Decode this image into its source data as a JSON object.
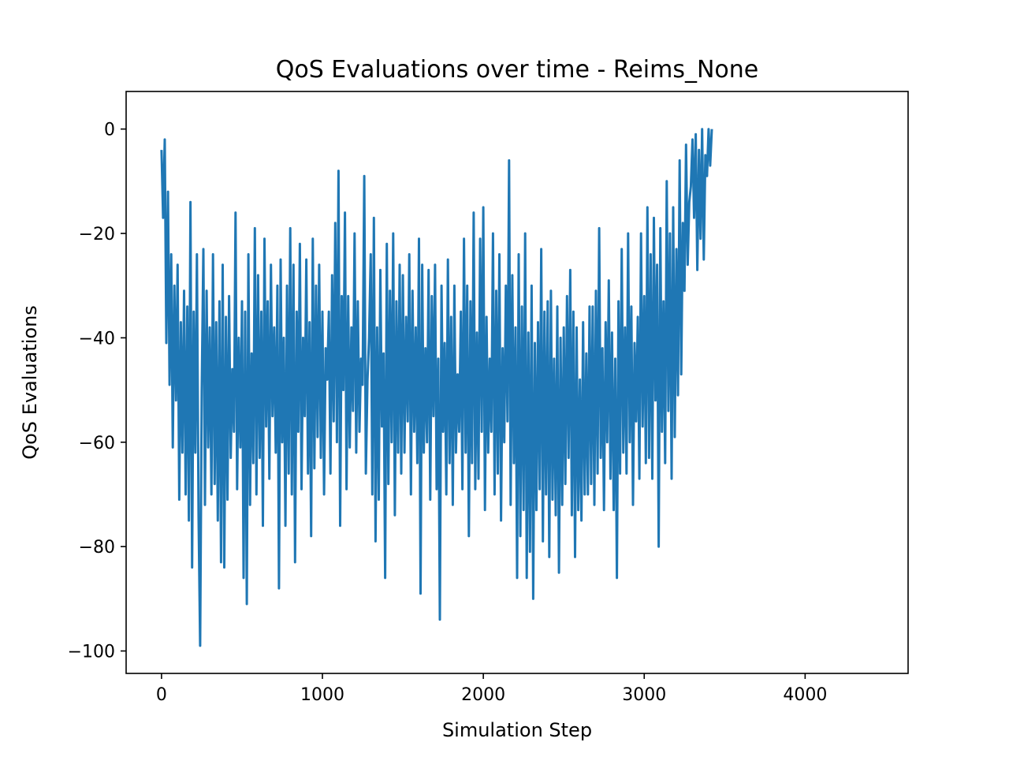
{
  "chart_data": {
    "type": "line",
    "title": "QoS Evaluations over time - Reims_None",
    "xlabel": "Simulation Step",
    "ylabel": "QoS Evaluations",
    "xlim": [
      -220,
      4640
    ],
    "ylim": [
      -104.3,
      7.2
    ],
    "xticks": [
      0,
      1000,
      2000,
      3000,
      4000
    ],
    "xtick_labels": [
      "0",
      "1000",
      "2000",
      "3000",
      "4000"
    ],
    "yticks": [
      0,
      -20,
      -40,
      -60,
      -80,
      -100
    ],
    "ytick_labels": [
      "0",
      "−20",
      "−40",
      "−60",
      "−80",
      "−100"
    ],
    "grid": false,
    "series": [
      {
        "color": "#1f77b4",
        "x_start": 0,
        "x_step": 10,
        "values": [
          -4,
          -17,
          -2,
          -41,
          -12,
          -49,
          -24,
          -61,
          -30,
          -52,
          -26,
          -71,
          -37,
          -62,
          -31,
          -70,
          -34,
          -75,
          -14,
          -84,
          -35,
          -62,
          -24,
          -74,
          -99,
          -50,
          -23,
          -72,
          -31,
          -61,
          -38,
          -70,
          -24,
          -68,
          -37,
          -75,
          -33,
          -83,
          -26,
          -84,
          -36,
          -71,
          -32,
          -63,
          -46,
          -58,
          -16,
          -69,
          -40,
          -61,
          -33,
          -86,
          -35,
          -91,
          -24,
          -72,
          -43,
          -64,
          -19,
          -70,
          -28,
          -63,
          -35,
          -76,
          -21,
          -57,
          -33,
          -67,
          -26,
          -55,
          -38,
          -62,
          -30,
          -88,
          -25,
          -60,
          -40,
          -76,
          -30,
          -66,
          -19,
          -70,
          -26,
          -83,
          -35,
          -58,
          -22,
          -69,
          -40,
          -55,
          -25,
          -66,
          -37,
          -78,
          -21,
          -65,
          -30,
          -59,
          -26,
          -63,
          -35,
          -70,
          -42,
          -48,
          -35,
          -66,
          -28,
          -56,
          -18,
          -60,
          -8,
          -76,
          -32,
          -50,
          -16,
          -69,
          -32,
          -61,
          -38,
          -54,
          -20,
          -62,
          -33,
          -58,
          -44,
          -49,
          -9,
          -66,
          -48,
          -40,
          -24,
          -70,
          -17,
          -79,
          -38,
          -71,
          -27,
          -57,
          -43,
          -86,
          -22,
          -68,
          -31,
          -60,
          -20,
          -74,
          -33,
          -62,
          -26,
          -66,
          -28,
          -62,
          -36,
          -56,
          -24,
          -70,
          -31,
          -58,
          -38,
          -64,
          -21,
          -89,
          -26,
          -62,
          -42,
          -60,
          -27,
          -71,
          -32,
          -55,
          -26,
          -69,
          -44,
          -94,
          -30,
          -58,
          -41,
          -70,
          -25,
          -64,
          -36,
          -72,
          -30,
          -62,
          -47,
          -58,
          -35,
          -69,
          -21,
          -62,
          -30,
          -78,
          -33,
          -64,
          -16,
          -69,
          -39,
          -67,
          -21,
          -58,
          -15,
          -73,
          -36,
          -62,
          -44,
          -58,
          -20,
          -70,
          -31,
          -66,
          -24,
          -75,
          -42,
          -60,
          -30,
          -56,
          -6,
          -72,
          -28,
          -64,
          -38,
          -86,
          -24,
          -78,
          -34,
          -73,
          -20,
          -86,
          -39,
          -81,
          -30,
          -90,
          -41,
          -73,
          -37,
          -69,
          -23,
          -79,
          -35,
          -70,
          -33,
          -82,
          -31,
          -71,
          -44,
          -74,
          -34,
          -85,
          -40,
          -72,
          -38,
          -68,
          -32,
          -63,
          -27,
          -74,
          -35,
          -82,
          -38,
          -73,
          -48,
          -75,
          -37,
          -70,
          -43,
          -70,
          -34,
          -68,
          -34,
          -72,
          -31,
          -66,
          -19,
          -63,
          -42,
          -73,
          -37,
          -60,
          -29,
          -67,
          -39,
          -73,
          -44,
          -86,
          -33,
          -66,
          -23,
          -62,
          -38,
          -66,
          -20,
          -60,
          -34,
          -72,
          -41,
          -56,
          -36,
          -67,
          -20,
          -57,
          -32,
          -64,
          -15,
          -63,
          -24,
          -67,
          -17,
          -52,
          -26,
          -80,
          -19,
          -58,
          -33,
          -64,
          -10,
          -54,
          -20,
          -67,
          -15,
          -59,
          -23,
          -51,
          -6,
          -47,
          -18,
          -31,
          -3,
          -26,
          -14,
          -11,
          -2,
          -17,
          -1,
          -27,
          -4,
          -21,
          0,
          -25,
          -5,
          -9,
          0,
          -7,
          0
        ]
      }
    ]
  }
}
